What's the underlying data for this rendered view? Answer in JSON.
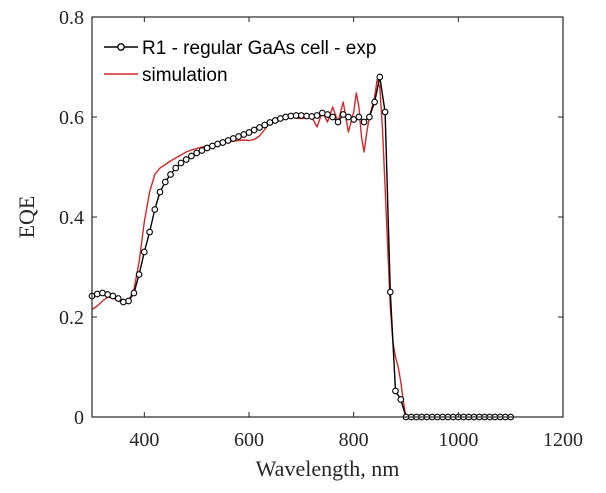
{
  "chart_data": {
    "type": "line",
    "xlabel": "Wavelength, nm",
    "ylabel": "EQE",
    "xlim": [
      300,
      1200
    ],
    "ylim": [
      0,
      0.8
    ],
    "xticks": [
      400,
      600,
      800,
      1000,
      1200
    ],
    "yticks": [
      0,
      0.2,
      0.4,
      0.6,
      0.8
    ],
    "xtick_labels": [
      "400",
      "600",
      "800",
      "1000",
      "1200"
    ],
    "ytick_labels": [
      "0",
      "0.2",
      "0.4",
      "0.6",
      "0.8"
    ],
    "grid": false,
    "legend_position": "top-left",
    "series": [
      {
        "name": "R1 - regular GaAs cell - exp",
        "color": "#000000",
        "marker": "circle",
        "x": [
          300,
          310,
          320,
          330,
          340,
          350,
          360,
          370,
          380,
          390,
          400,
          410,
          420,
          430,
          440,
          450,
          460,
          470,
          480,
          490,
          500,
          510,
          520,
          530,
          540,
          550,
          560,
          570,
          580,
          590,
          600,
          610,
          620,
          630,
          640,
          650,
          660,
          670,
          680,
          690,
          700,
          710,
          720,
          730,
          740,
          750,
          760,
          770,
          780,
          790,
          800,
          810,
          820,
          830,
          840,
          850,
          860,
          870,
          880,
          890,
          900,
          910,
          920,
          930,
          940,
          950,
          960,
          970,
          980,
          990,
          1000,
          1010,
          1020,
          1030,
          1040,
          1050,
          1060,
          1070,
          1080,
          1090,
          1100
        ],
        "y": [
          0.242,
          0.246,
          0.248,
          0.245,
          0.242,
          0.237,
          0.23,
          0.232,
          0.248,
          0.285,
          0.33,
          0.37,
          0.415,
          0.45,
          0.47,
          0.485,
          0.498,
          0.508,
          0.515,
          0.522,
          0.528,
          0.533,
          0.538,
          0.542,
          0.546,
          0.549,
          0.553,
          0.557,
          0.561,
          0.565,
          0.569,
          0.574,
          0.579,
          0.584,
          0.589,
          0.593,
          0.597,
          0.6,
          0.602,
          0.603,
          0.603,
          0.602,
          0.601,
          0.603,
          0.608,
          0.605,
          0.6,
          0.59,
          0.605,
          0.6,
          0.595,
          0.6,
          0.59,
          0.6,
          0.63,
          0.68,
          0.61,
          0.25,
          0.052,
          0.035,
          0,
          0,
          0,
          0,
          0,
          0,
          0,
          0,
          0,
          0,
          0,
          0,
          0,
          0,
          0,
          0,
          0,
          0,
          0,
          0,
          0
        ]
      },
      {
        "name": "simulation",
        "color": "#d62728",
        "marker": "none",
        "x": [
          300,
          310,
          320,
          330,
          340,
          350,
          360,
          370,
          380,
          390,
          400,
          410,
          420,
          430,
          440,
          450,
          460,
          470,
          480,
          490,
          500,
          510,
          520,
          530,
          540,
          550,
          560,
          570,
          580,
          590,
          600,
          610,
          620,
          630,
          640,
          650,
          660,
          670,
          680,
          690,
          700,
          710,
          720,
          730,
          740,
          750,
          760,
          770,
          780,
          790,
          800,
          805,
          810,
          815,
          820,
          825,
          830,
          835,
          840,
          845,
          850,
          855,
          860,
          865,
          870,
          875,
          880,
          885,
          890,
          895,
          900,
          950,
          1000,
          1050,
          1100
        ],
        "y": [
          0.215,
          0.222,
          0.232,
          0.24,
          0.238,
          0.232,
          0.228,
          0.232,
          0.255,
          0.31,
          0.39,
          0.45,
          0.485,
          0.498,
          0.505,
          0.512,
          0.518,
          0.524,
          0.53,
          0.534,
          0.537,
          0.54,
          0.542,
          0.544,
          0.546,
          0.548,
          0.55,
          0.552,
          0.553,
          0.554,
          0.553,
          0.555,
          0.562,
          0.575,
          0.588,
          0.597,
          0.6,
          0.6,
          0.6,
          0.598,
          0.597,
          0.598,
          0.6,
          0.58,
          0.61,
          0.59,
          0.62,
          0.59,
          0.63,
          0.57,
          0.61,
          0.648,
          0.62,
          0.56,
          0.53,
          0.57,
          0.6,
          0.62,
          0.64,
          0.675,
          0.66,
          0.58,
          0.46,
          0.34,
          0.22,
          0.15,
          0.12,
          0.1,
          0.07,
          0.03,
          0,
          0,
          0,
          0,
          0
        ]
      }
    ]
  }
}
